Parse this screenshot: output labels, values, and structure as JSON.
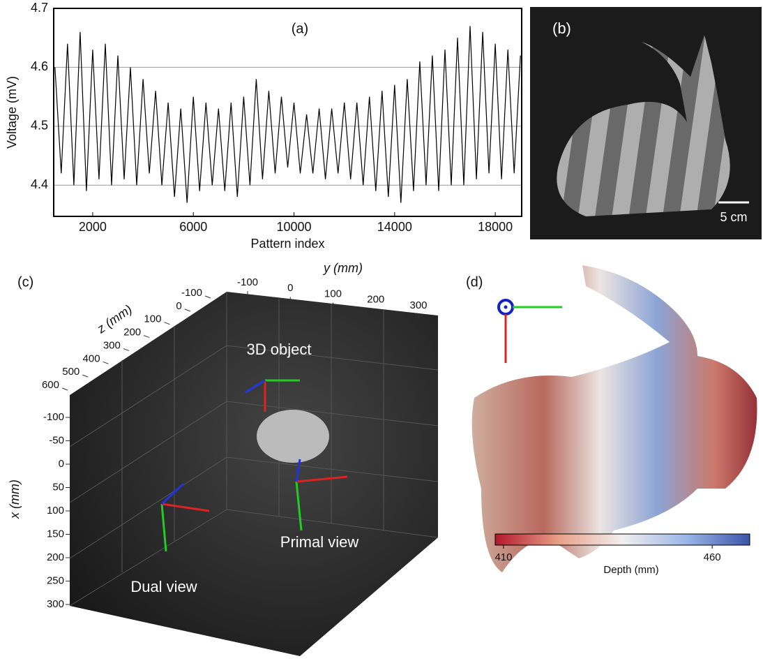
{
  "chart_data": {
    "type": "line",
    "title": "(a)",
    "x_label": "Pattern index",
    "y_label": "Voltage (mV)",
    "x": [
      500,
      750,
      1000,
      1250,
      1500,
      1750,
      2000,
      2250,
      2500,
      2750,
      3000,
      3250,
      3500,
      3750,
      4000,
      4250,
      4500,
      4750,
      5000,
      5250,
      5500,
      5750,
      6000,
      6250,
      6500,
      6750,
      7000,
      7250,
      7500,
      7750,
      8000,
      8250,
      8500,
      8750,
      9000,
      9250,
      9500,
      9750,
      10000,
      10250,
      10500,
      10750,
      11000,
      11250,
      11500,
      11750,
      12000,
      12250,
      12500,
      12750,
      13000,
      13250,
      13500,
      13750,
      14000,
      14250,
      14500,
      14750,
      15000,
      15250,
      15500,
      15750,
      16000,
      16250,
      16500,
      16750,
      17000,
      17250,
      17500,
      17750,
      18000,
      18250,
      18500,
      18750,
      19000
    ],
    "values": [
      4.6,
      4.42,
      4.64,
      4.4,
      4.66,
      4.39,
      4.63,
      4.41,
      4.64,
      4.4,
      4.62,
      4.41,
      4.6,
      4.4,
      4.58,
      4.42,
      4.56,
      4.4,
      4.54,
      4.38,
      4.53,
      4.37,
      4.55,
      4.39,
      4.54,
      4.4,
      4.53,
      4.39,
      4.54,
      4.38,
      4.55,
      4.4,
      4.58,
      4.41,
      4.56,
      4.42,
      4.55,
      4.43,
      4.54,
      4.42,
      4.52,
      4.42,
      4.53,
      4.41,
      4.53,
      4.42,
      4.54,
      4.41,
      4.54,
      4.4,
      4.55,
      4.39,
      4.56,
      4.38,
      4.57,
      4.37,
      4.58,
      4.39,
      4.61,
      4.4,
      4.62,
      4.39,
      4.63,
      4.4,
      4.65,
      4.4,
      4.67,
      4.41,
      4.66,
      4.42,
      4.64,
      4.41,
      4.63,
      4.42,
      4.62
    ],
    "color": "#000000",
    "xlim": [
      450,
      19050
    ],
    "xticks": [
      2000,
      6000,
      10000,
      14000,
      18000
    ],
    "ylim": [
      4.347,
      4.7
    ],
    "yticks": [
      4.4,
      4.5,
      4.6,
      4.7
    ],
    "grid": true
  },
  "panel_b": {
    "label": "(b)",
    "scale_bar": "5 cm"
  },
  "panel_c": {
    "label": "(c)",
    "y_axis": "y (mm)",
    "z_axis": "z (mm)",
    "x_axis": "x (mm)",
    "y_ticks": [
      -100,
      0,
      100,
      200,
      300
    ],
    "z_ticks": [
      -100,
      0,
      100,
      200,
      300,
      400,
      500,
      600
    ],
    "x_ticks": [
      -100,
      -50,
      0,
      50,
      100,
      150,
      200,
      250,
      300
    ],
    "object_label": "3D object",
    "primal_label": "Primal view",
    "dual_label": "Dual view"
  },
  "panel_d": {
    "label": "(d)",
    "colorbar": {
      "label": "Depth (mm)",
      "lim": [
        408,
        469
      ],
      "ticks": [
        410,
        460
      ],
      "colors": [
        "#b2182b",
        "#e8a088",
        "#f2efee",
        "#9ab6e8",
        "#3a55a8"
      ]
    }
  }
}
